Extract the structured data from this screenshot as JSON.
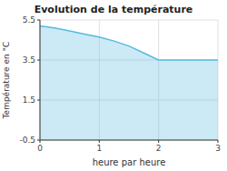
{
  "chart_data": {
    "type": "area",
    "title": "Evolution de la température",
    "xlabel": "heure par heure",
    "ylabel": "Température en °C",
    "x": [
      0,
      0.25,
      0.5,
      0.75,
      1.0,
      1.25,
      1.5,
      1.75,
      2.0,
      2.25,
      2.5,
      2.75,
      3.0
    ],
    "values": [
      5.2,
      5.1,
      4.95,
      4.8,
      4.65,
      4.45,
      4.2,
      3.85,
      3.5,
      3.5,
      3.5,
      3.5,
      3.5
    ],
    "color": "#55bbdd",
    "xlim": [
      0,
      3
    ],
    "ylim": [
      -0.5,
      5.5
    ],
    "xticks": [
      0,
      1,
      2,
      3
    ],
    "yticks": [
      -0.5,
      1.5,
      3.5,
      5.5
    ],
    "grid": true
  }
}
